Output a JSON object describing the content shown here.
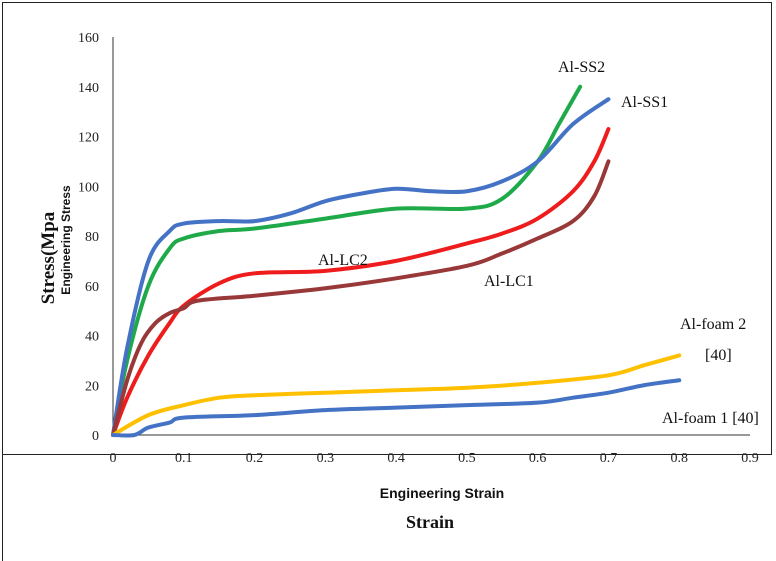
{
  "chart_data": {
    "type": "line",
    "title": "",
    "xlabel": "Engineering Strain",
    "xlabel_secondary": "Strain",
    "ylabel": "Stress(Mpa",
    "ylabel_secondary": "Engineering Stress",
    "xlim": [
      0,
      0.9
    ],
    "ylim": [
      0,
      160
    ],
    "x_ticks": [
      "0",
      "0.1",
      "0.2",
      "0.3",
      "0.4",
      "0.5",
      "0.6",
      "0.7",
      "0.8",
      "0.9"
    ],
    "y_ticks": [
      "0",
      "20",
      "40",
      "60",
      "80",
      "100",
      "120",
      "140",
      "160"
    ],
    "grid": false,
    "legend": "inline labels",
    "series": [
      {
        "name": "Al-SS2",
        "color": "#1faa4a",
        "x": [
          0,
          0.02,
          0.05,
          0.08,
          0.1,
          0.15,
          0.2,
          0.3,
          0.4,
          0.5,
          0.55,
          0.6,
          0.63,
          0.66
        ],
        "y": [
          0,
          30,
          60,
          75,
          79,
          82,
          83,
          87,
          91,
          91,
          95,
          110,
          125,
          140
        ]
      },
      {
        "name": "Al-SS1",
        "color": "#4472c4",
        "x": [
          0,
          0.02,
          0.05,
          0.08,
          0.1,
          0.15,
          0.2,
          0.25,
          0.3,
          0.35,
          0.4,
          0.45,
          0.5,
          0.55,
          0.6,
          0.65,
          0.7
        ],
        "y": [
          0,
          35,
          70,
          82,
          85,
          86,
          86,
          89,
          94,
          97,
          99,
          98,
          98,
          102,
          110,
          125,
          135
        ]
      },
      {
        "name": "Al-LC2",
        "color": "#ee1c1c",
        "x": [
          0,
          0.02,
          0.05,
          0.08,
          0.1,
          0.15,
          0.2,
          0.3,
          0.4,
          0.5,
          0.55,
          0.6,
          0.65,
          0.68,
          0.7
        ],
        "y": [
          0,
          15,
          32,
          45,
          52,
          61,
          65,
          66,
          70,
          77,
          81,
          87,
          98,
          110,
          123
        ]
      },
      {
        "name": "Al-LC1",
        "color": "#983838",
        "x": [
          0,
          0.02,
          0.04,
          0.06,
          0.08,
          0.1,
          0.12,
          0.2,
          0.3,
          0.4,
          0.5,
          0.55,
          0.6,
          0.65,
          0.68,
          0.7
        ],
        "y": [
          0,
          22,
          37,
          45,
          49,
          51,
          54,
          56,
          59,
          63,
          68,
          73,
          79,
          86,
          96,
          110
        ]
      },
      {
        "name": "Al-foam 2 [40]",
        "color": "#ffc000",
        "x": [
          0,
          0.05,
          0.1,
          0.15,
          0.2,
          0.3,
          0.4,
          0.5,
          0.6,
          0.7,
          0.75,
          0.8
        ],
        "y": [
          0,
          8,
          12,
          15,
          16,
          17,
          18,
          19,
          21,
          24,
          28,
          32
        ]
      },
      {
        "name": "Al-foam 1 [40]",
        "color": "#4472c4",
        "x": [
          0,
          0.03,
          0.05,
          0.08,
          0.1,
          0.2,
          0.3,
          0.4,
          0.5,
          0.6,
          0.65,
          0.7,
          0.75,
          0.8
        ],
        "y": [
          0,
          0,
          3,
          5,
          7,
          8,
          10,
          11,
          12,
          13,
          15,
          17,
          20,
          22
        ]
      }
    ],
    "label_text": {
      "Al-SS2": "Al-SS2",
      "Al-SS1": "Al-SS1",
      "Al-LC2": "Al-LC2",
      "Al-LC1": "Al-LC1",
      "Al-foam 2 [40]": [
        "Al-foam 2",
        "[40]"
      ],
      "Al-foam 1 [40]": "Al-foam 1 [40]"
    }
  }
}
